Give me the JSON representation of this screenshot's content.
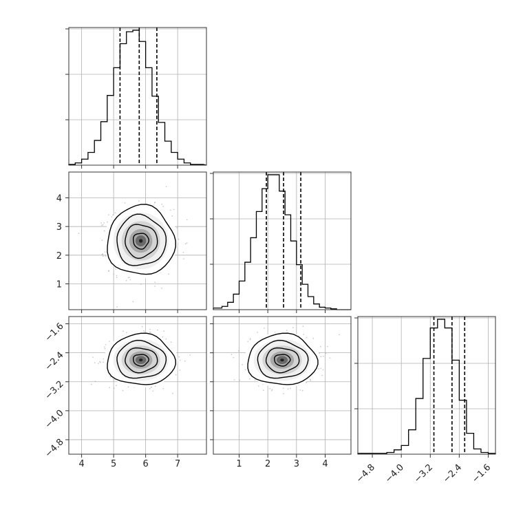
{
  "chart_data": {
    "type": "corner",
    "grid": true,
    "parameters": [
      {
        "range": [
          3.6,
          7.9
        ],
        "ticks": [
          4,
          5,
          6,
          7
        ],
        "tick_labels": [
          "4",
          "5",
          "6",
          "7"
        ],
        "quantiles": [
          5.2,
          5.8,
          6.35
        ],
        "mean": 5.85,
        "sd": 0.48
      },
      {
        "range": [
          0.1,
          4.9
        ],
        "ticks": [
          1,
          2,
          3,
          4
        ],
        "tick_labels": [
          "1",
          "2",
          "3",
          "4"
        ],
        "quantiles": [
          1.95,
          2.55,
          3.15
        ],
        "mean": 2.5,
        "sd": 0.55
      },
      {
        "range": [
          -5.2,
          -1.4
        ],
        "ticks": [
          -4.8,
          -4.0,
          -3.2,
          -2.4,
          -1.6
        ],
        "tick_labels": [
          "−4.8",
          "−4.0",
          "−3.2",
          "−2.4",
          "−1.6"
        ],
        "quantiles": [
          -3.1,
          -2.6,
          -2.25
        ],
        "mean": -2.6,
        "sd": 0.32
      }
    ],
    "histograms": [
      {
        "param": 0,
        "bins": [
          3.6,
          3.8,
          4.0,
          4.2,
          4.4,
          4.6,
          4.8,
          5.0,
          5.2,
          5.4,
          5.6,
          5.8,
          6.0,
          6.2,
          6.4,
          6.6,
          6.8,
          7.0,
          7.2,
          7.4,
          7.6,
          7.8
        ],
        "counts": [
          1,
          3,
          8,
          17,
          33,
          58,
          93,
          130,
          162,
          178,
          180,
          165,
          130,
          92,
          57,
          32,
          17,
          8,
          3,
          1,
          1
        ]
      },
      {
        "param": 1,
        "bins": [
          0.2,
          0.4,
          0.6,
          0.8,
          1.0,
          1.2,
          1.4,
          1.6,
          1.8,
          2.0,
          2.2,
          2.4,
          2.6,
          2.8,
          3.0,
          3.2,
          3.4,
          3.6,
          3.8,
          4.0,
          4.2,
          4.4,
          4.6,
          4.8
        ],
        "counts": [
          2,
          4,
          9,
          19,
          35,
          58,
          88,
          120,
          148,
          165,
          165,
          145,
          116,
          84,
          55,
          31,
          16,
          7,
          3,
          2,
          1,
          0,
          0
        ]
      },
      {
        "param": 2,
        "bins": [
          -4.6,
          -4.4,
          -4.2,
          -4.0,
          -3.8,
          -3.6,
          -3.4,
          -3.2,
          -3.0,
          -2.8,
          -2.6,
          -2.4,
          -2.2,
          -2.0,
          -1.8,
          -1.6,
          -1.4
        ],
        "counts": [
          1,
          2,
          5,
          10,
          28,
          64,
          110,
          145,
          155,
          145,
          108,
          62,
          24,
          6,
          2,
          1
        ]
      }
    ],
    "scatter_panels": [
      {
        "x": 0,
        "y": 1,
        "contours": "2D density with filled levels and 4 contour lines",
        "scatter": true
      },
      {
        "x": 0,
        "y": 2,
        "contours": "2D density with filled levels and 4 contour lines",
        "scatter": true
      },
      {
        "x": 1,
        "y": 2,
        "contours": "2D density with filled levels and 4 contour lines",
        "scatter": true
      }
    ],
    "colors": {
      "line": "#000000",
      "grid": "#b0b0b0",
      "scatter": "#9a9a9a",
      "axes": "#333333"
    }
  }
}
